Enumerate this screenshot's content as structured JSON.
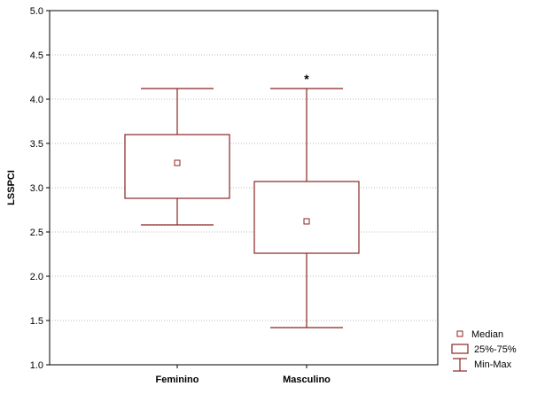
{
  "chart_data": {
    "type": "boxplot",
    "ylabel": "LSSPCI",
    "xlabel": "",
    "title": "",
    "ylim": [
      1.0,
      5.0
    ],
    "yticks": [
      "1.0",
      "1.5",
      "2.0",
      "2.5",
      "3.0",
      "3.5",
      "4.0",
      "4.5",
      "5.0"
    ],
    "categories": [
      "Feminino",
      "Masculino"
    ],
    "boxes": [
      {
        "category": "Feminino",
        "min": 2.58,
        "q1": 2.88,
        "median": 3.28,
        "q3": 3.6,
        "max": 4.12,
        "annotation": ""
      },
      {
        "category": "Masculino",
        "min": 1.42,
        "q1": 2.26,
        "median": 2.62,
        "q3": 3.07,
        "max": 4.12,
        "annotation": "*"
      }
    ],
    "legend": {
      "position": "bottom-right",
      "median_label": "Median",
      "box_label": "25%-75%",
      "whisker_label": "Min-Max"
    },
    "grid": true,
    "colors": {
      "box": "#8b2323",
      "grid": "#b8b8b8",
      "axis": "#000000"
    }
  }
}
